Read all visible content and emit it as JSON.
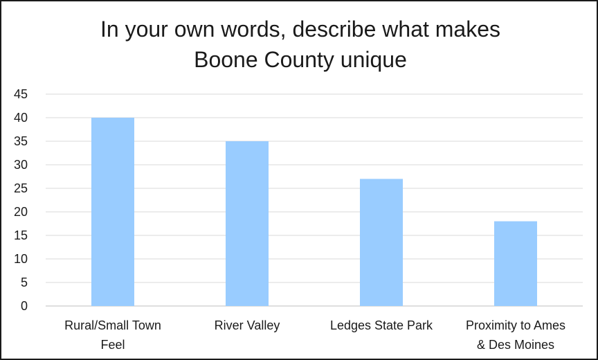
{
  "chart_data": {
    "type": "bar",
    "title_lines": [
      "In your own words, describe what makes",
      "Boone County unique"
    ],
    "categories": [
      [
        "Rural/Small Town",
        "Feel"
      ],
      [
        "River Valley"
      ],
      [
        "Ledges State Park"
      ],
      [
        "Proximity to Ames",
        "& Des Moines"
      ]
    ],
    "values": [
      40,
      35,
      27,
      18
    ],
    "ylim": [
      0,
      45
    ],
    "yticks": [
      "0",
      "5",
      "10",
      "15",
      "20",
      "25",
      "30",
      "35",
      "40",
      "45"
    ],
    "grid": true,
    "legend": "none",
    "bar_color": "#99CCFF",
    "grid_color": "#d9d9d9"
  }
}
